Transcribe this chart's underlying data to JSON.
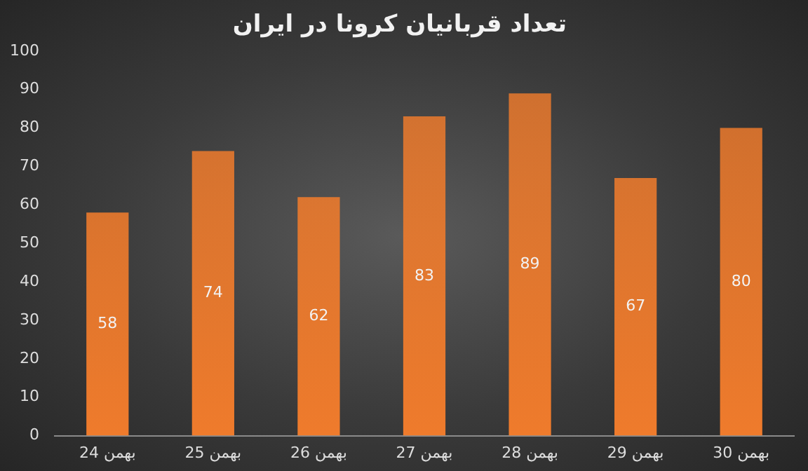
{
  "chart_data": {
    "type": "bar",
    "title": "تعداد قربانیان کرونا در ایران",
    "categories": [
      "24 بهمن",
      "25 بهمن",
      "26 بهمن",
      "27 بهمن",
      "28 بهمن",
      "29 بهمن",
      "30 بهمن"
    ],
    "values": [
      58,
      74,
      62,
      83,
      89,
      67,
      80
    ],
    "color": "#ef7b2c",
    "ylim": [
      0,
      100
    ],
    "yticks": [
      0,
      10,
      20,
      30,
      40,
      50,
      60,
      70,
      80,
      90,
      100
    ],
    "grid": false,
    "legend": false,
    "data_labels": true
  }
}
